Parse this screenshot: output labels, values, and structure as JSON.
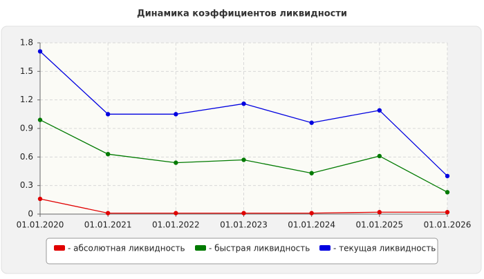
{
  "chart_data": {
    "type": "line",
    "title": "Динамика коэффициентов ликвидности",
    "categories": [
      "01.01.2020",
      "01.01.2021",
      "01.01.2022",
      "01.01.2023",
      "01.01.2024",
      "01.01.2025",
      "01.01.2026"
    ],
    "series": [
      {
        "name": "- абсолютная ликвидность",
        "color": "#e00000",
        "values": [
          0.16,
          0.01,
          0.01,
          0.01,
          0.01,
          0.02,
          0.02
        ]
      },
      {
        "name": "- быстрая ликвидность",
        "color": "#007a00",
        "values": [
          0.99,
          0.63,
          0.54,
          0.57,
          0.43,
          0.61,
          0.23
        ]
      },
      {
        "name": "- текущая ликвидность",
        "color": "#0000e0",
        "values": [
          1.71,
          1.05,
          1.05,
          1.16,
          0.96,
          1.09,
          0.4
        ]
      }
    ],
    "ylim": [
      0,
      1.8
    ],
    "yticks": [
      0,
      0.3,
      0.6,
      0.9,
      1.2,
      1.5,
      1.8
    ],
    "grid": true
  }
}
